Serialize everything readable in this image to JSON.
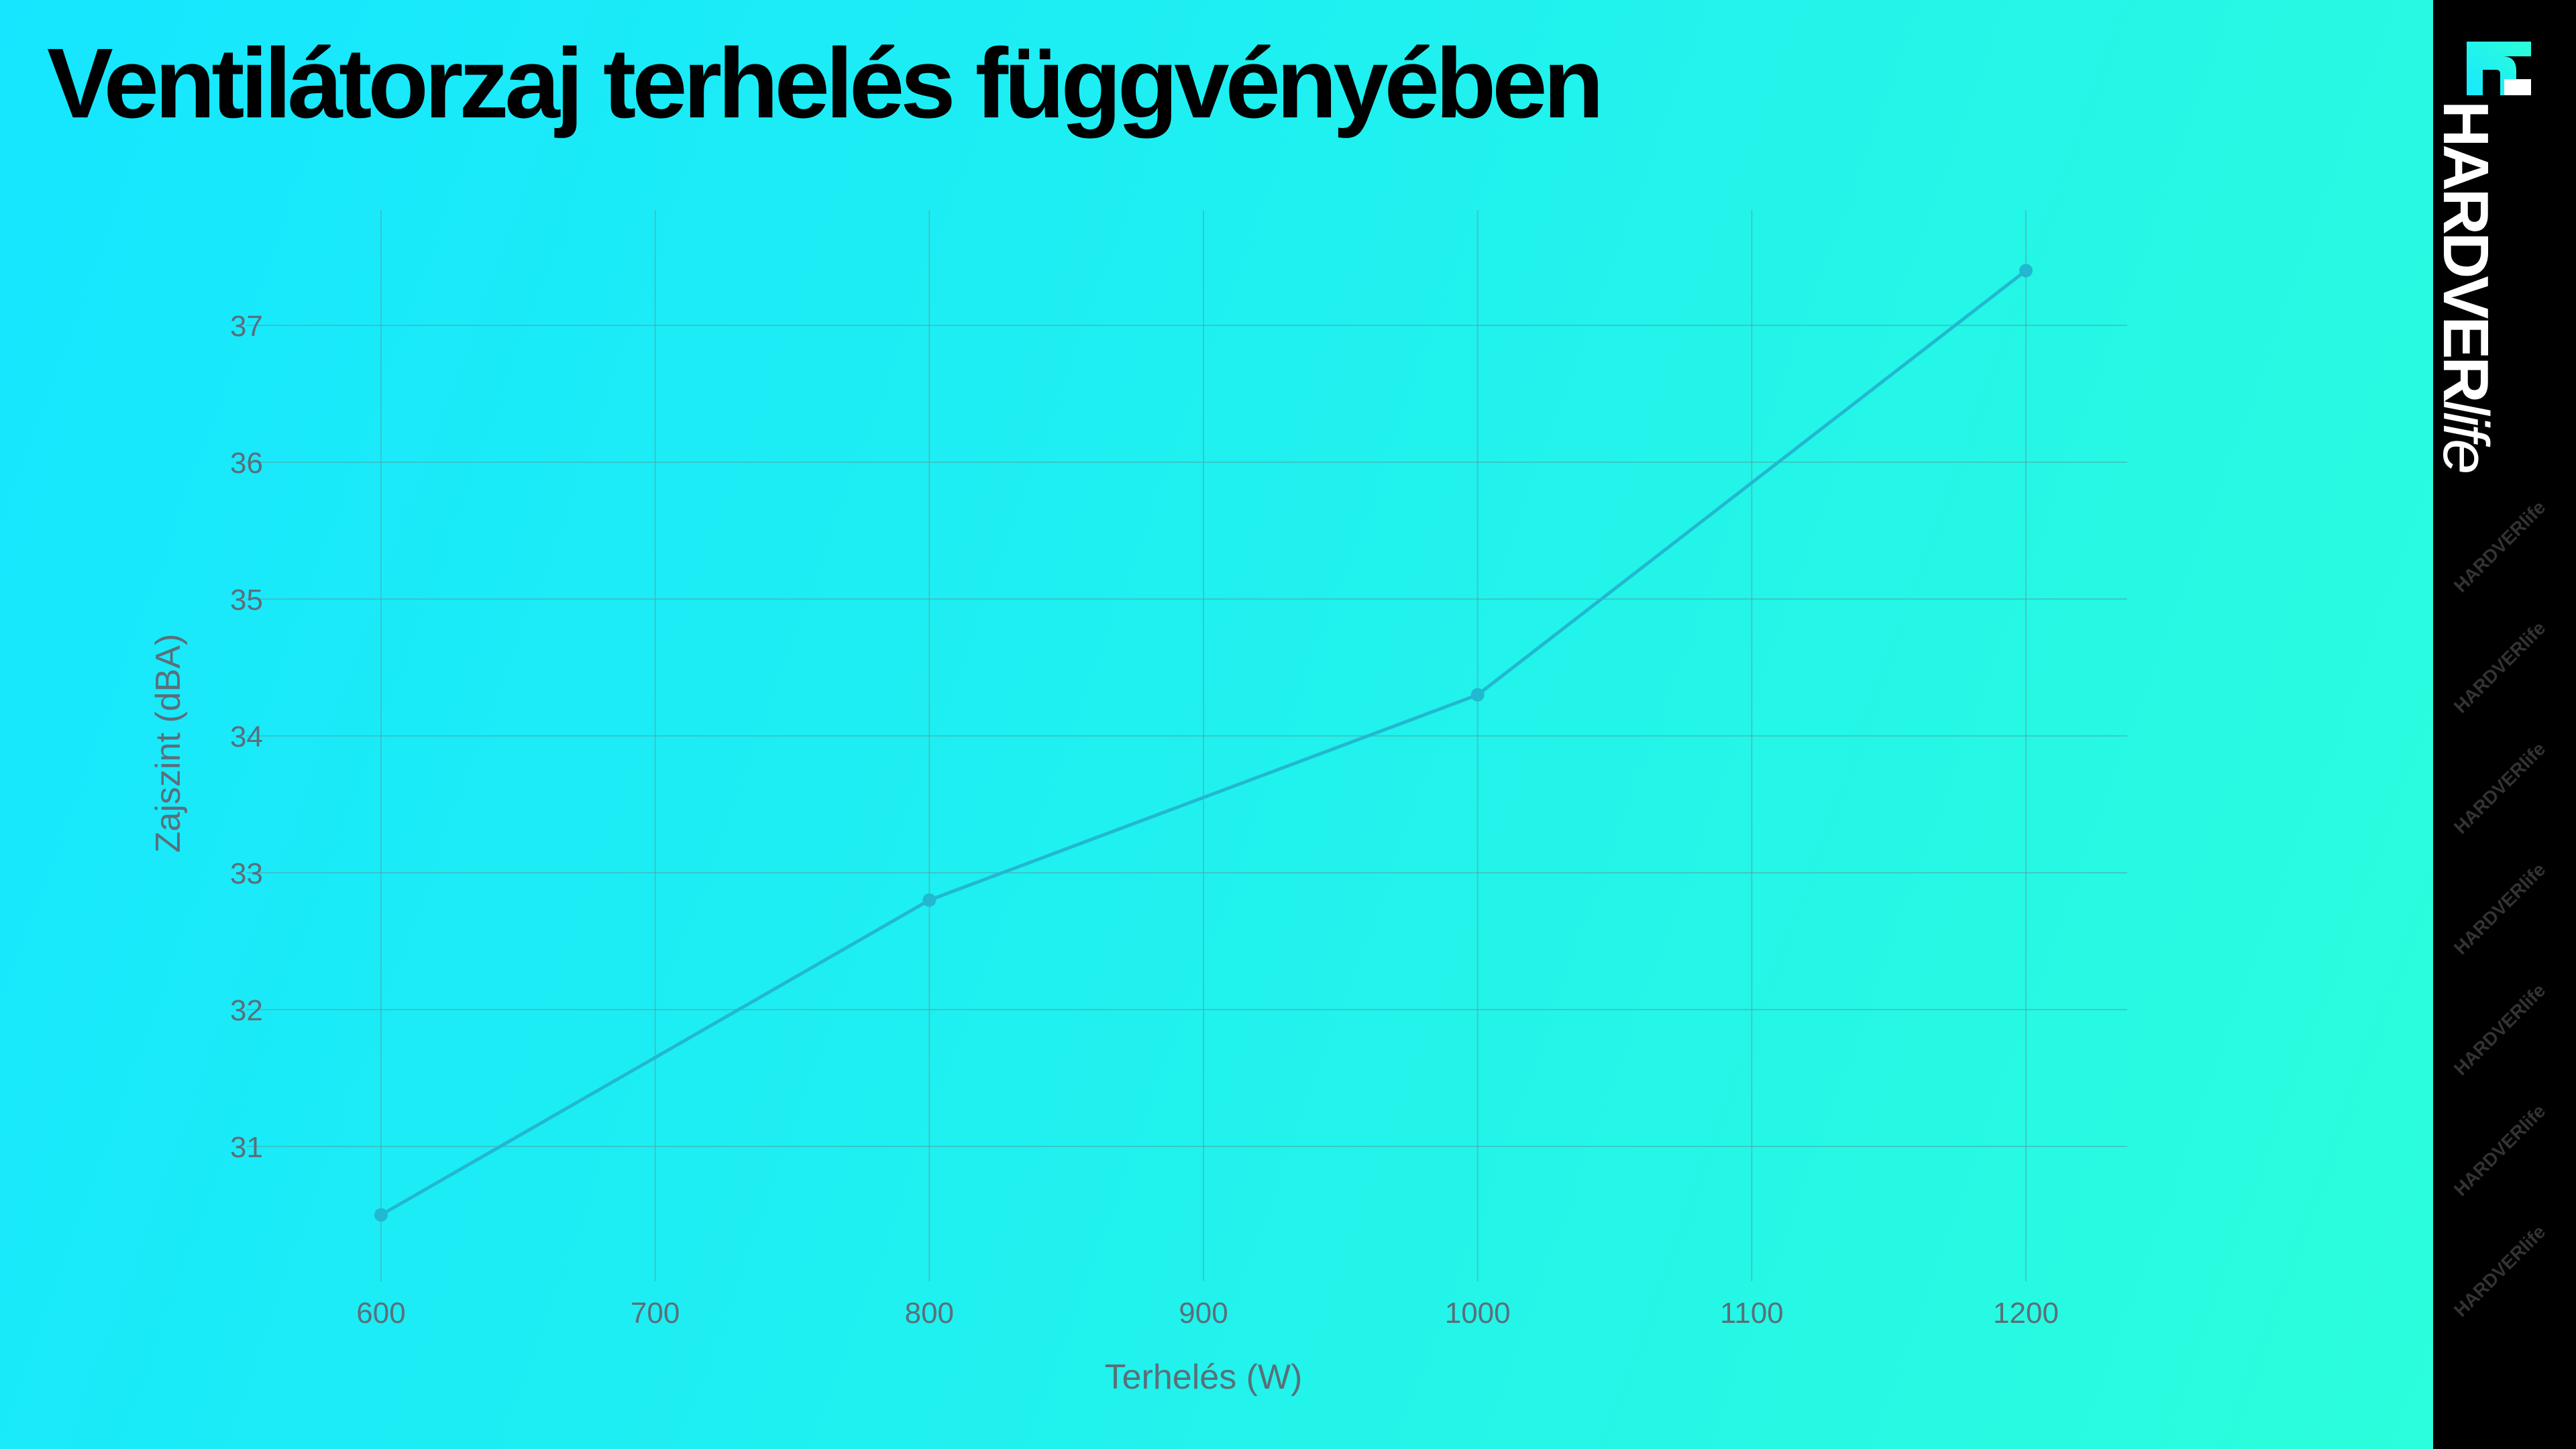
{
  "chart_data": {
    "type": "line",
    "title": "Ventilátorzaj terhelés függvényében",
    "xlabel": "Terhelés (W)",
    "ylabel": "Zajszint (dBA)",
    "x": [
      600,
      800,
      1000,
      1200
    ],
    "series": [
      {
        "name": "Zajszint",
        "values": [
          30.5,
          32.8,
          34.3,
          37.4
        ]
      }
    ],
    "xticks": [
      "600",
      "700",
      "800",
      "900",
      "1000",
      "1100",
      "1200"
    ],
    "yticks": [
      "31",
      "32",
      "33",
      "34",
      "35",
      "36",
      "37"
    ],
    "xlim": [
      550,
      1240
    ],
    "ylim": [
      30.0,
      37.8
    ],
    "grid": true,
    "line_color": "#22b8d0"
  },
  "branding": {
    "logo_bold": "HARDVER",
    "logo_light": "life"
  }
}
